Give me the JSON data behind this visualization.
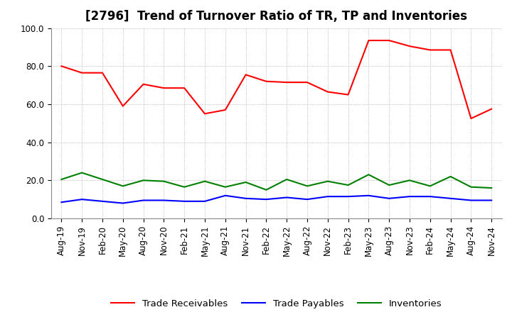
{
  "title": "[2796]  Trend of Turnover Ratio of TR, TP and Inventories",
  "x_labels": [
    "Aug-19",
    "Nov-19",
    "Feb-20",
    "May-20",
    "Aug-20",
    "Nov-20",
    "Feb-21",
    "May-21",
    "Aug-21",
    "Nov-21",
    "Feb-22",
    "May-22",
    "Aug-22",
    "Nov-22",
    "Feb-23",
    "May-23",
    "Aug-23",
    "Nov-23",
    "Feb-24",
    "May-24",
    "Aug-24",
    "Nov-24"
  ],
  "trade_receivables": [
    80.0,
    76.5,
    76.5,
    59.0,
    70.5,
    68.5,
    68.5,
    55.0,
    57.0,
    75.5,
    72.0,
    71.5,
    71.5,
    66.5,
    65.0,
    93.5,
    93.5,
    90.5,
    88.5,
    88.5,
    52.5,
    57.5
  ],
  "trade_payables": [
    8.5,
    10.0,
    9.0,
    8.0,
    9.5,
    9.5,
    9.0,
    9.0,
    12.0,
    10.5,
    10.0,
    11.0,
    10.0,
    11.5,
    11.5,
    12.0,
    10.5,
    11.5,
    11.5,
    10.5,
    9.5,
    9.5
  ],
  "inventories": [
    20.5,
    24.0,
    20.5,
    17.0,
    20.0,
    19.5,
    16.5,
    19.5,
    16.5,
    19.0,
    15.0,
    20.5,
    17.0,
    19.5,
    17.5,
    23.0,
    17.5,
    20.0,
    17.0,
    22.0,
    16.5,
    16.0
  ],
  "color_tr": "#ff0000",
  "color_tp": "#0000ff",
  "color_inv": "#008000",
  "ylim": [
    0.0,
    100.0
  ],
  "yticks": [
    0.0,
    20.0,
    40.0,
    60.0,
    80.0,
    100.0
  ],
  "background_color": "#ffffff",
  "plot_bg_color": "#ffffff",
  "grid_color": "#aaaaaa",
  "legend_labels": [
    "Trade Receivables",
    "Trade Payables",
    "Inventories"
  ],
  "title_fontsize": 12,
  "axis_fontsize": 8.5,
  "legend_fontsize": 9.5,
  "linewidth": 1.5
}
